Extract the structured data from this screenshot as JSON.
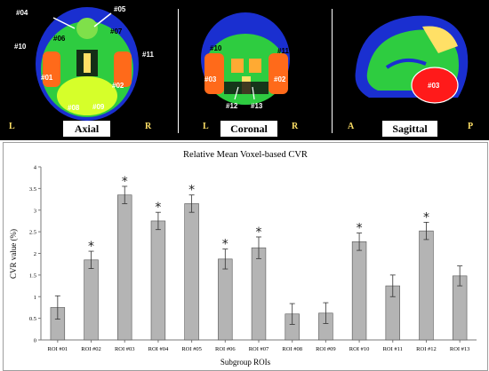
{
  "views": [
    {
      "name": "Axial",
      "left_letter": "L",
      "right_letter": "R"
    },
    {
      "name": "Coronal",
      "left_letter": "L",
      "right_letter": "R"
    },
    {
      "name": "Sagittal",
      "left_letter": "A",
      "right_letter": "P"
    }
  ],
  "roi_tags": {
    "axial": [
      "#04",
      "#05",
      "#06",
      "#07",
      "#10",
      "#11",
      "#01",
      "#02",
      "#08",
      "#09"
    ],
    "coronal": [
      "#10",
      "#11",
      "#03",
      "#02",
      "#12",
      "#13"
    ],
    "sagittal": [
      "#03"
    ]
  },
  "colors": {
    "bar": "#b4b4b4",
    "bar_edge": "#555555",
    "frame": "#9e9e9e"
  },
  "chart_data": {
    "type": "bar",
    "title": "Relative  Mean  Voxel-based  CVR",
    "xlabel": "Subgroup ROIs",
    "ylabel": "CVR value (%)",
    "ylim": [
      0,
      4
    ],
    "yticks": [
      "0",
      "0.5",
      "1",
      "1.5",
      "2",
      "2.5",
      "3",
      "3.5",
      "4"
    ],
    "categories": [
      "ROI #01",
      "ROI #02",
      "ROI #03",
      "ROI #04",
      "ROI #05",
      "ROI #06",
      "ROI #07",
      "ROI #08",
      "ROI #09",
      "ROI #10",
      "ROI #11",
      "ROI #12",
      "ROI #13"
    ],
    "values": [
      0.75,
      1.85,
      3.35,
      2.75,
      3.15,
      1.87,
      2.13,
      0.6,
      0.62,
      2.27,
      1.25,
      2.52,
      1.48
    ],
    "errors": [
      0.27,
      0.2,
      0.2,
      0.2,
      0.2,
      0.23,
      0.25,
      0.24,
      0.24,
      0.2,
      0.25,
      0.2,
      0.23
    ],
    "significant": [
      false,
      true,
      true,
      true,
      true,
      true,
      true,
      false,
      false,
      true,
      false,
      true,
      false
    ],
    "significance_marker": "*"
  }
}
